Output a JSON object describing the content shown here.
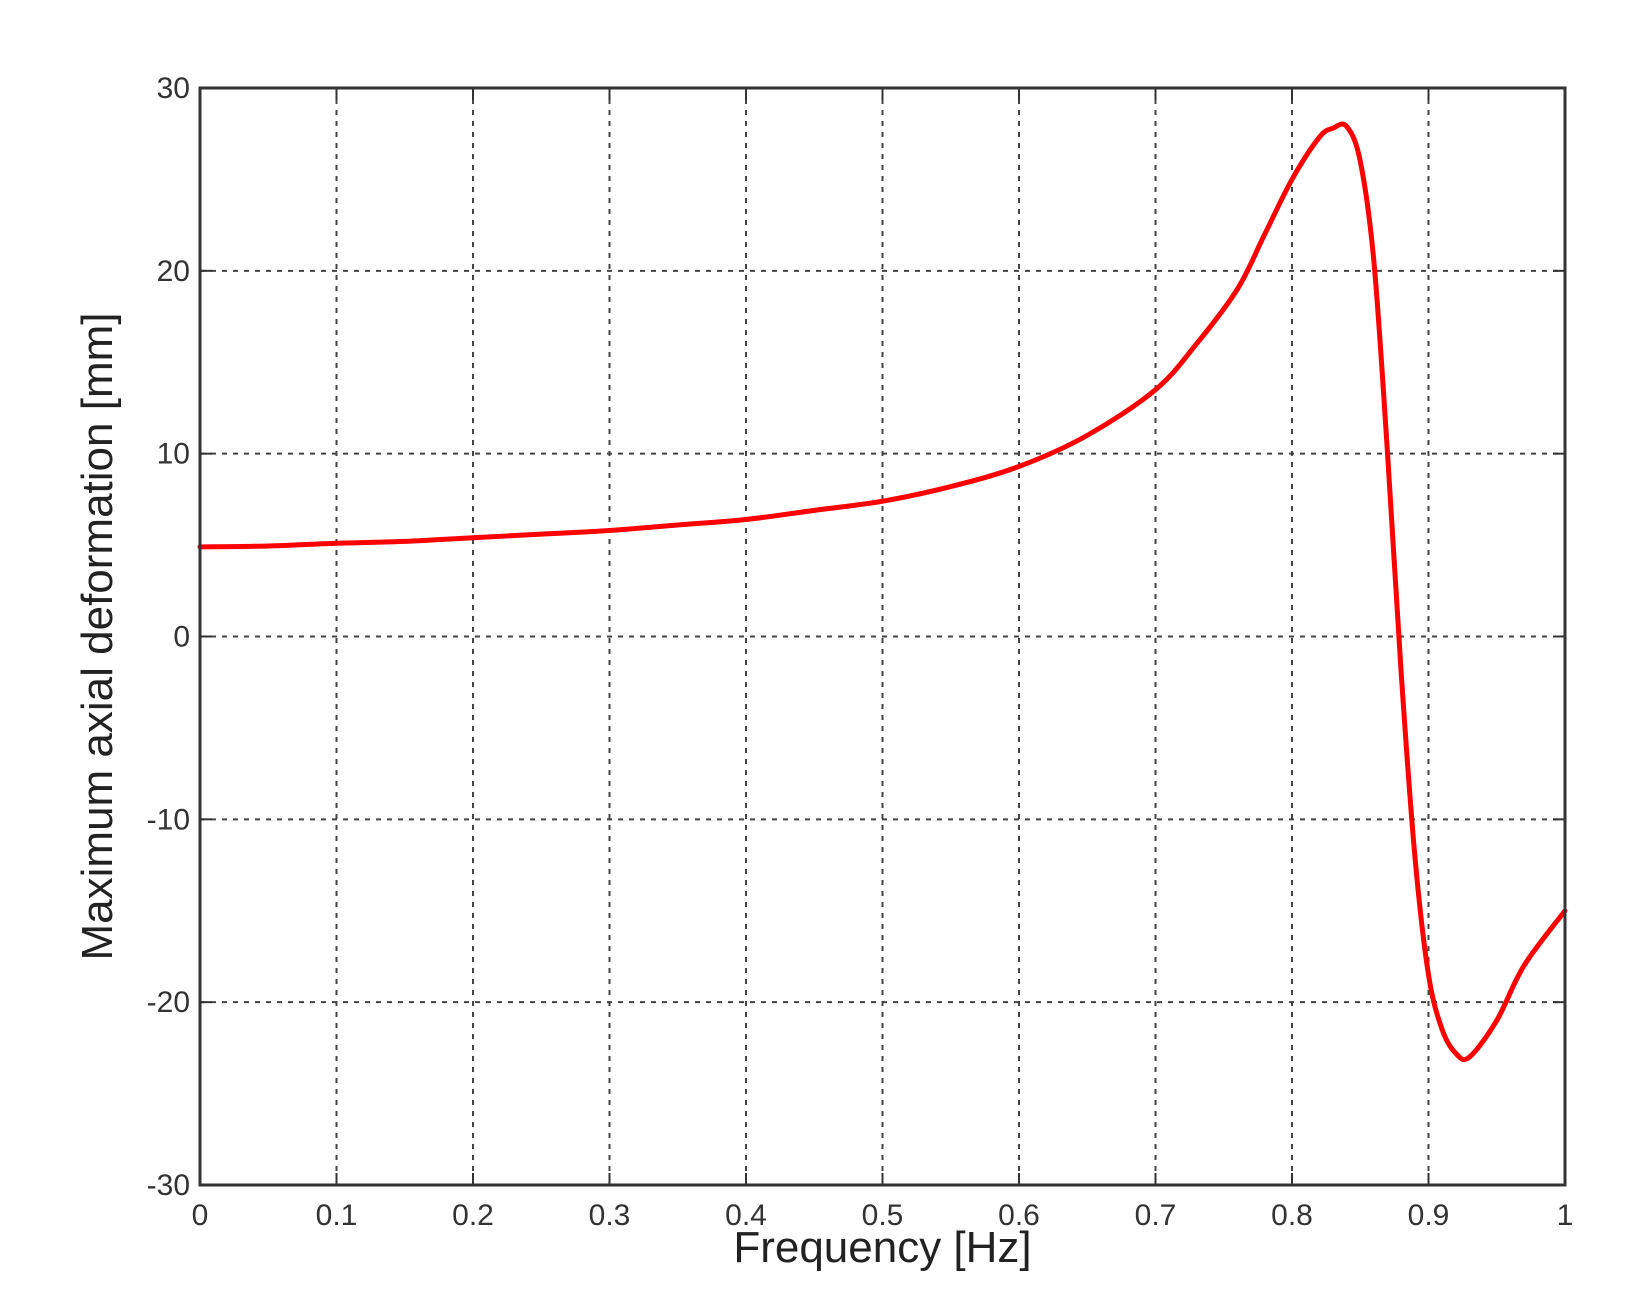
{
  "chart_data": {
    "type": "line",
    "title": "",
    "xlabel": "Frequency [Hz]",
    "ylabel": "Maximum axial deformation [mm]",
    "xlim": [
      0,
      1
    ],
    "ylim": [
      -30,
      30
    ],
    "xticks": [
      0,
      0.1,
      0.2,
      0.3,
      0.4,
      0.5,
      0.6,
      0.7,
      0.8,
      0.9,
      1
    ],
    "xtick_labels": [
      "0",
      "0.1",
      "0.2",
      "0.3",
      "0.4",
      "0.5",
      "0.6",
      "0.7",
      "0.8",
      "0.9",
      "1"
    ],
    "yticks": [
      -30,
      -20,
      -10,
      0,
      10,
      20,
      30
    ],
    "ytick_labels": [
      "-30",
      "-20",
      "-10",
      "0",
      "10",
      "20",
      "30"
    ],
    "grid": true,
    "legend": "none",
    "series": [
      {
        "color": "#ff0000",
        "x": [
          0,
          0.05,
          0.1,
          0.15,
          0.2,
          0.25,
          0.3,
          0.35,
          0.4,
          0.45,
          0.5,
          0.55,
          0.6,
          0.65,
          0.7,
          0.73,
          0.76,
          0.78,
          0.8,
          0.82,
          0.83,
          0.84,
          0.85,
          0.86,
          0.87,
          0.88,
          0.89,
          0.9,
          0.91,
          0.92,
          0.93,
          0.95,
          0.97,
          1.0
        ],
        "y": [
          4.9,
          4.95,
          5.1,
          5.2,
          5.4,
          5.6,
          5.8,
          6.1,
          6.4,
          6.9,
          7.4,
          8.2,
          9.3,
          11.0,
          13.5,
          16.0,
          19.0,
          22.0,
          25.0,
          27.3,
          27.8,
          27.9,
          26.0,
          20.5,
          10.0,
          -2.0,
          -12.0,
          -18.5,
          -21.5,
          -22.8,
          -23.0,
          -21.0,
          -18.0,
          -15.0
        ]
      }
    ]
  }
}
